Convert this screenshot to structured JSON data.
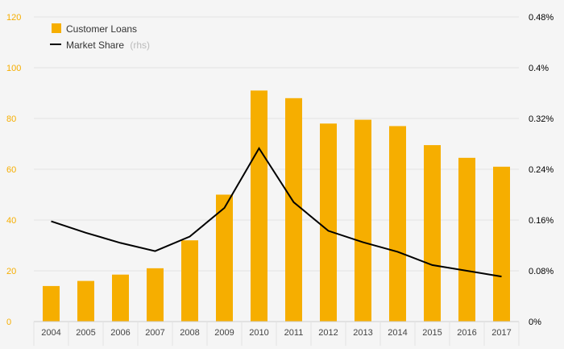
{
  "chart_data": {
    "type": "bar",
    "title": "",
    "categories": [
      "2004",
      "2005",
      "2006",
      "2007",
      "2008",
      "2009",
      "2010",
      "2011",
      "2012",
      "2013",
      "2014",
      "2015",
      "2016",
      "2017"
    ],
    "series": [
      {
        "name": "Customer Loans",
        "kind": "bar",
        "axis": "left",
        "color": "#f6ae00",
        "values": [
          14,
          16,
          18.5,
          21,
          32,
          50,
          91,
          88,
          78,
          79.5,
          77,
          69.5,
          64.5,
          61
        ]
      },
      {
        "name": "Market Share",
        "name_suffix": "(rhs)",
        "kind": "line",
        "axis": "right",
        "color": "#000000",
        "values": [
          0.158,
          0.14,
          0.124,
          0.111,
          0.134,
          0.179,
          0.273,
          0.188,
          0.143,
          0.125,
          0.11,
          0.089,
          0.08,
          0.071
        ]
      }
    ],
    "y_left": {
      "range": [
        0,
        120
      ],
      "ticks": [
        "0",
        "20",
        "40",
        "60",
        "80",
        "100",
        "120"
      ],
      "color": "#f6ae00"
    },
    "y_right": {
      "range": [
        0,
        0.48
      ],
      "ticks": [
        "0%",
        "0.08%",
        "0.16%",
        "0.24%",
        "0.32%",
        "0.4%",
        "0.48%"
      ],
      "color": "#000000"
    },
    "legend": {
      "position": "top-left",
      "items": [
        "Customer Loans",
        "Market Share"
      ]
    },
    "grid": true
  }
}
